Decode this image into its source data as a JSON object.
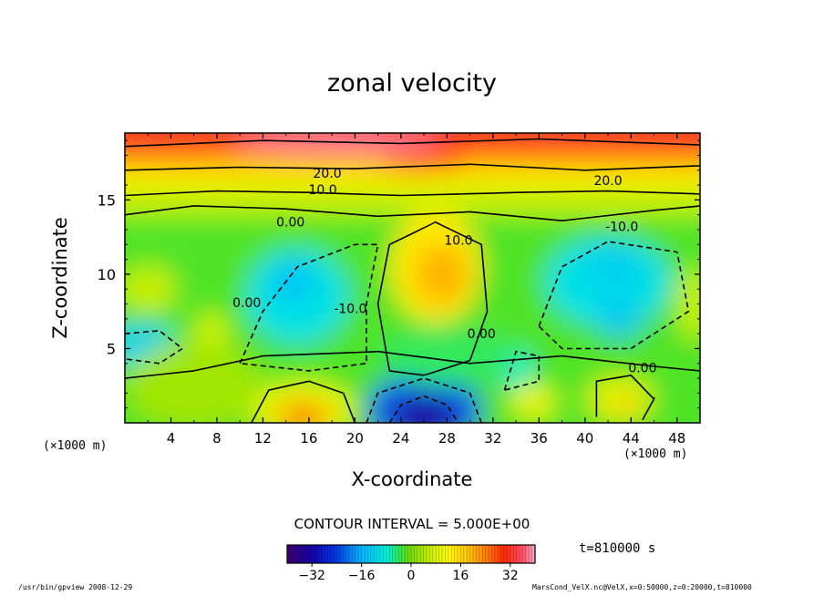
{
  "chart_data": {
    "type": "heatmap",
    "title": "zonal velocity",
    "xlabel": "X-coordinate",
    "ylabel": "Z-coordinate",
    "x_unit_label": "(×1000 m)",
    "xlim": [
      0,
      50
    ],
    "ylim": [
      0,
      19.5
    ],
    "x_ticks": [
      4,
      8,
      12,
      16,
      20,
      24,
      28,
      32,
      36,
      40,
      44,
      48
    ],
    "y_ticks": [
      5,
      10,
      15
    ],
    "contour_labels": [
      {
        "text": "20.0",
        "x": 17.6,
        "z": 16.5
      },
      {
        "text": "10.0",
        "x": 17.2,
        "z": 15.4
      },
      {
        "text": "0.00",
        "x": 14.4,
        "z": 13.2
      },
      {
        "text": "10.0",
        "x": 29.0,
        "z": 12.0
      },
      {
        "text": "-10.0",
        "x": 43.2,
        "z": 12.9
      },
      {
        "text": "0.00",
        "x": 10.6,
        "z": 7.8
      },
      {
        "text": "-10.0",
        "x": 19.6,
        "z": 7.4
      },
      {
        "text": "0.00",
        "x": 31.0,
        "z": 5.7
      },
      {
        "text": "20.0",
        "x": 42.0,
        "z": 16.0
      },
      {
        "text": "0.00",
        "x": 45.0,
        "z": 3.4
      }
    ],
    "colorbar": {
      "min": -40,
      "max": 40,
      "tick_values": [
        -32,
        -16,
        0,
        16,
        32
      ],
      "tick_labels": [
        "−32",
        "−16",
        "0",
        "16",
        "32"
      ]
    },
    "contour_interval_text": "CONTOUR INTERVAL = 5.000E+00",
    "time_text": "t=810000 s"
  },
  "footer": {
    "left": "/usr/bin/gpview  2008-12-29",
    "right": "MarsCond_VelX.nc@VelX,x=0:50000,z=0:20000,t=810000"
  }
}
